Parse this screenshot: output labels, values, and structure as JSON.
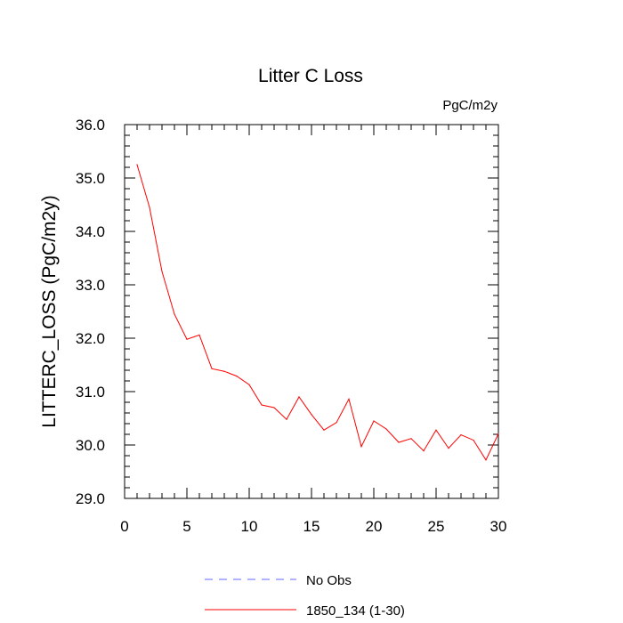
{
  "chart_data": {
    "type": "line",
    "title": "Litter C Loss",
    "units_label": "PgC/m2y",
    "ylabel": "LITTERC_LOSS  (PgC/m2y)",
    "xlabel": "",
    "xlim": [
      0,
      30
    ],
    "ylim": [
      29.0,
      36.0
    ],
    "x_ticks": [
      "0",
      "5",
      "10",
      "15",
      "20",
      "25",
      "30"
    ],
    "y_ticks": [
      "29.0",
      "30.0",
      "31.0",
      "32.0",
      "33.0",
      "34.0",
      "35.0",
      "36.0"
    ],
    "grid": false,
    "legend_position": "bottom",
    "series": [
      {
        "name": "1850_134 (1-30)",
        "color": "#ff0000",
        "x": [
          1,
          2,
          3,
          4,
          5,
          6,
          7,
          8,
          9,
          10,
          11,
          12,
          13,
          14,
          15,
          16,
          17,
          18,
          19,
          20,
          21,
          22,
          23,
          24,
          25,
          26,
          27,
          28,
          29,
          30
        ],
        "values": [
          35.25,
          34.45,
          33.25,
          32.45,
          31.98,
          32.06,
          31.43,
          31.38,
          31.29,
          31.13,
          30.75,
          30.7,
          30.48,
          30.9,
          30.57,
          30.28,
          30.42,
          30.86,
          29.97,
          30.45,
          30.3,
          30.05,
          30.12,
          29.89,
          30.28,
          29.94,
          30.19,
          30.09,
          29.72,
          30.21
        ]
      }
    ],
    "legend": [
      {
        "label": "No Obs",
        "color": "#6666ff",
        "dash": true
      },
      {
        "label": "1850_134 (1-30)",
        "color": "#ff0000",
        "dash": false
      }
    ]
  }
}
